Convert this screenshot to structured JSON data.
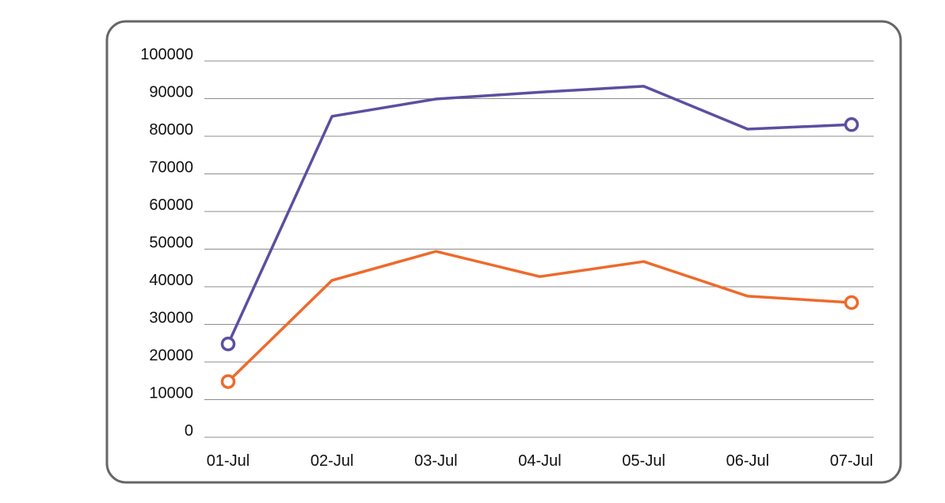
{
  "chart_data": {
    "type": "line",
    "title": "",
    "xlabel": "",
    "ylabel": "",
    "categories": [
      "01-Jul",
      "02-Jul",
      "03-Jul",
      "04-Jul",
      "05-Jul",
      "06-Jul",
      "07-Jul"
    ],
    "yticks": [
      "0",
      "10000",
      "20000",
      "30000",
      "40000",
      "50000",
      "60000",
      "70000",
      "80000",
      "90000",
      "100000"
    ],
    "ylim": [
      0,
      100000
    ],
    "grid": true,
    "legend": "none",
    "series": [
      {
        "color": "#5b4fa0",
        "values": [
          24800,
          85300,
          89900,
          91700,
          93300,
          81900,
          83100
        ],
        "end_markers": true
      },
      {
        "color": "#ee6a2c",
        "values": [
          14800,
          41700,
          49400,
          42700,
          46700,
          37500,
          35800
        ],
        "end_markers": true
      }
    ],
    "frame_color": "#666666"
  }
}
